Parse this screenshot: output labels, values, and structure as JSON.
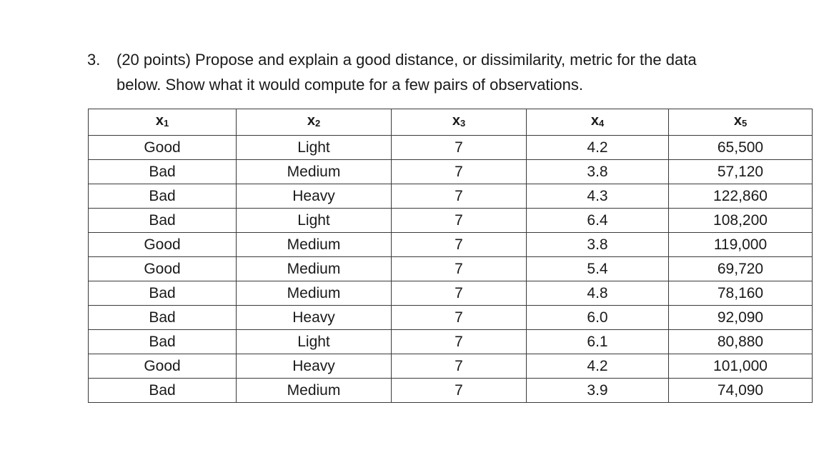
{
  "question": {
    "number": "3.",
    "line1": "(20 points) Propose and explain a good distance, or dissimilarity, metric for the data",
    "line2": "below.  Show what it would compute for a few pairs of observations."
  },
  "table": {
    "headers": [
      {
        "base": "x",
        "sub": "1"
      },
      {
        "base": "x",
        "sub": "2"
      },
      {
        "base": "x",
        "sub": "3"
      },
      {
        "base": "x",
        "sub": "4"
      },
      {
        "base": "x",
        "sub": "5"
      }
    ],
    "rows": [
      [
        "Good",
        "Light",
        "7",
        "4.2",
        "65,500"
      ],
      [
        "Bad",
        "Medium",
        "7",
        "3.8",
        "57,120"
      ],
      [
        "Bad",
        "Heavy",
        "7",
        "4.3",
        "122,860"
      ],
      [
        "Bad",
        "Light",
        "7",
        "6.4",
        "108,200"
      ],
      [
        "Good",
        "Medium",
        "7",
        "3.8",
        "119,000"
      ],
      [
        "Good",
        "Medium",
        "7",
        "5.4",
        "69,720"
      ],
      [
        "Bad",
        "Medium",
        "7",
        "4.8",
        "78,160"
      ],
      [
        "Bad",
        "Heavy",
        "7",
        "6.0",
        "92,090"
      ],
      [
        "Bad",
        "Light",
        "7",
        "6.1",
        "80,880"
      ],
      [
        "Good",
        "Heavy",
        "7",
        "4.2",
        "101,000"
      ],
      [
        "Bad",
        "Medium",
        "7",
        "3.9",
        "74,090"
      ]
    ]
  }
}
